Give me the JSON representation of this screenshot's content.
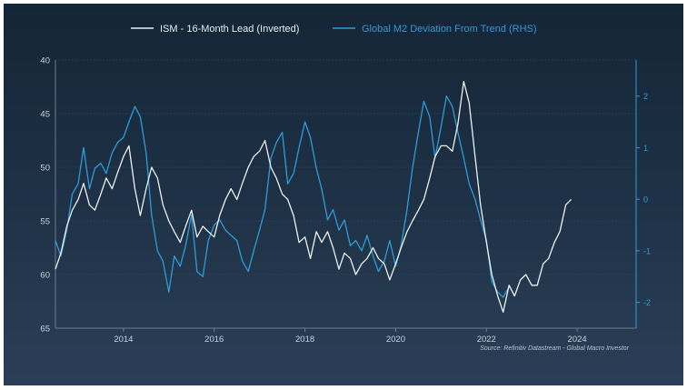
{
  "legend": {
    "ism_label": "ISM - 16-Month Lead (Inverted)",
    "m2_label": "Global M2 Deviation From Trend (RHS)"
  },
  "source": "Source: Refinitiv Datastream - Global Macro Investor",
  "colors": {
    "background_top": "#142536",
    "background_bottom": "#2a3f57",
    "ism_line": "#eef1f4",
    "m2_line": "#2f9bd8",
    "left_axis_text": "#c9d2dc",
    "right_axis": "#2f9bd8"
  },
  "chart_data": {
    "type": "line",
    "title": "",
    "xlabel": "",
    "x_range": [
      2012.5,
      2025.3
    ],
    "x_ticks": [
      {
        "value": 2014,
        "label": "2014"
      },
      {
        "value": 2016,
        "label": "2016"
      },
      {
        "value": 2018,
        "label": "2018"
      },
      {
        "value": 2020,
        "label": "2020"
      },
      {
        "value": 2022,
        "label": "2022"
      },
      {
        "value": 2024,
        "label": "2024"
      }
    ],
    "y_left": {
      "inverted": true,
      "range": [
        40,
        65
      ],
      "ticks": [
        {
          "value": 40,
          "label": "40"
        },
        {
          "value": 45,
          "label": "45"
        },
        {
          "value": 50,
          "label": "50"
        },
        {
          "value": 55,
          "label": "55"
        },
        {
          "value": 60,
          "label": "60"
        },
        {
          "value": 65,
          "label": "65"
        }
      ]
    },
    "y_right": {
      "range": [
        -2.5,
        2.7
      ],
      "ticks": [
        {
          "value": 2,
          "label": "2"
        },
        {
          "value": 1,
          "label": "1"
        },
        {
          "value": 0,
          "label": "0"
        },
        {
          "value": -1,
          "label": "-1"
        },
        {
          "value": -2,
          "label": "-2"
        }
      ]
    },
    "grid": true,
    "legend_position": "top-center",
    "series": [
      {
        "name": "ISM - 16-Month Lead (Inverted)",
        "axis": "left",
        "x": [
          2012.5,
          2012.62,
          2012.75,
          2012.87,
          2013.0,
          2013.12,
          2013.25,
          2013.37,
          2013.5,
          2013.62,
          2013.75,
          2013.87,
          2014.0,
          2014.12,
          2014.25,
          2014.37,
          2014.5,
          2014.62,
          2014.75,
          2014.87,
          2015.0,
          2015.12,
          2015.25,
          2015.37,
          2015.5,
          2015.62,
          2015.75,
          2015.87,
          2016.0,
          2016.12,
          2016.25,
          2016.37,
          2016.5,
          2016.62,
          2016.75,
          2016.87,
          2017.0,
          2017.12,
          2017.25,
          2017.37,
          2017.5,
          2017.62,
          2017.75,
          2017.87,
          2018.0,
          2018.12,
          2018.25,
          2018.37,
          2018.5,
          2018.62,
          2018.75,
          2018.87,
          2019.0,
          2019.12,
          2019.25,
          2019.37,
          2019.5,
          2019.62,
          2019.75,
          2019.87,
          2020.0,
          2020.12,
          2020.25,
          2020.37,
          2020.5,
          2020.62,
          2020.75,
          2020.87,
          2021.0,
          2021.12,
          2021.25,
          2021.37,
          2021.5,
          2021.62,
          2021.75,
          2021.87,
          2022.0,
          2022.12,
          2022.25,
          2022.37,
          2022.5,
          2022.62,
          2022.75,
          2022.87,
          2023.0,
          2023.12,
          2023.25,
          2023.37,
          2023.5,
          2023.62,
          2023.75,
          2023.87
        ],
        "values": [
          59.5,
          58.0,
          55.5,
          54.0,
          53.0,
          51.5,
          53.5,
          54.0,
          52.5,
          51.0,
          52.0,
          50.5,
          49.0,
          48.0,
          52.0,
          54.5,
          52.0,
          50.0,
          51.0,
          53.5,
          55.0,
          56.0,
          57.0,
          55.5,
          54.0,
          56.5,
          55.5,
          56.0,
          56.5,
          54.5,
          53.0,
          52.0,
          53.0,
          51.5,
          50.0,
          49.0,
          48.5,
          47.5,
          50.0,
          51.0,
          52.5,
          53.0,
          54.5,
          57.0,
          56.5,
          58.5,
          56.0,
          57.0,
          56.0,
          57.5,
          59.5,
          58.0,
          58.5,
          60.0,
          59.0,
          58.5,
          57.5,
          58.5,
          59.0,
          60.5,
          59.0,
          57.5,
          56.0,
          55.0,
          54.0,
          53.0,
          51.0,
          49.0,
          48.0,
          48.0,
          48.5,
          46.0,
          42.0,
          44.0,
          49.0,
          53.5,
          57.0,
          60.0,
          62.0,
          63.5,
          61.0,
          62.0,
          60.5,
          60.0,
          61.0,
          61.0,
          59.0,
          58.5,
          57.0,
          56.0,
          53.5,
          53.0
        ]
      },
      {
        "name": "Global M2 Deviation From Trend (RHS)",
        "axis": "right",
        "x": [
          2012.5,
          2012.62,
          2012.75,
          2012.87,
          2013.0,
          2013.12,
          2013.25,
          2013.37,
          2013.5,
          2013.62,
          2013.75,
          2013.87,
          2014.0,
          2014.12,
          2014.25,
          2014.37,
          2014.5,
          2014.62,
          2014.75,
          2014.87,
          2015.0,
          2015.12,
          2015.25,
          2015.37,
          2015.5,
          2015.62,
          2015.75,
          2015.87,
          2016.0,
          2016.12,
          2016.25,
          2016.37,
          2016.5,
          2016.62,
          2016.75,
          2016.87,
          2017.0,
          2017.12,
          2017.25,
          2017.37,
          2017.5,
          2017.62,
          2017.75,
          2017.87,
          2018.0,
          2018.12,
          2018.25,
          2018.37,
          2018.5,
          2018.62,
          2018.75,
          2018.87,
          2019.0,
          2019.12,
          2019.25,
          2019.37,
          2019.5,
          2019.62,
          2019.75,
          2019.87,
          2020.0,
          2020.12,
          2020.25,
          2020.37,
          2020.5,
          2020.62,
          2020.75,
          2020.87,
          2021.0,
          2021.12,
          2021.25,
          2021.37,
          2021.5,
          2021.62,
          2021.75,
          2021.87,
          2022.0,
          2022.12,
          2022.25,
          2022.37,
          2022.5
        ],
        "values": [
          -0.8,
          -1.1,
          -0.6,
          0.1,
          0.3,
          1.0,
          0.2,
          0.6,
          0.7,
          0.5,
          0.9,
          1.1,
          1.2,
          1.5,
          1.8,
          1.6,
          0.9,
          -0.3,
          -1.0,
          -1.2,
          -1.8,
          -1.1,
          -1.3,
          -0.9,
          -0.3,
          -1.4,
          -1.5,
          -0.8,
          -0.5,
          -0.4,
          -0.6,
          -0.7,
          -0.8,
          -1.2,
          -1.4,
          -1.0,
          -0.6,
          -0.2,
          0.8,
          1.1,
          1.3,
          0.3,
          0.5,
          1.0,
          1.5,
          1.2,
          0.6,
          0.2,
          -0.4,
          -0.2,
          -0.6,
          -0.4,
          -0.9,
          -0.8,
          -1.0,
          -0.7,
          -1.1,
          -1.4,
          -1.2,
          -0.8,
          -1.3,
          -0.9,
          -0.2,
          0.6,
          1.3,
          1.9,
          1.6,
          0.8,
          1.4,
          2.0,
          1.8,
          1.3,
          0.8,
          0.3,
          0.0,
          -0.4,
          -0.8,
          -1.6,
          -1.8,
          -1.9,
          -1.7
        ]
      }
    ]
  }
}
